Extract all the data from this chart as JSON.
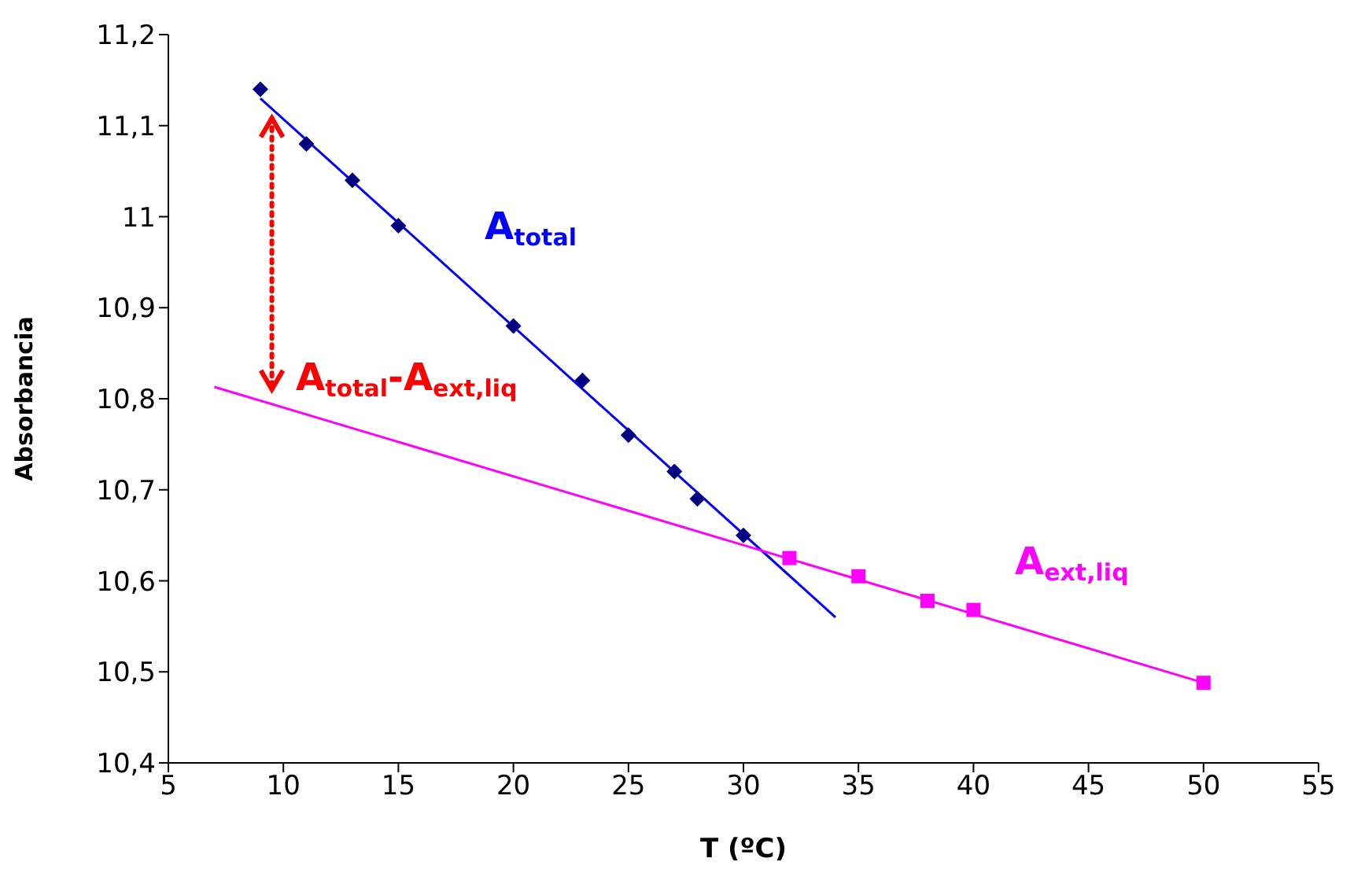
{
  "chart_data": {
    "type": "scatter",
    "xlabel": "T (ºC)",
    "ylabel": "Absorbancia",
    "xlim": [
      5,
      55
    ],
    "xticks": [
      5,
      10,
      15,
      20,
      25,
      30,
      35,
      40,
      45,
      50,
      55
    ],
    "ylim": [
      10.4,
      11.2
    ],
    "yticks": [
      {
        "value": 10.4,
        "label": "10,4"
      },
      {
        "value": 10.5,
        "label": "10,5"
      },
      {
        "value": 10.6,
        "label": "10,6"
      },
      {
        "value": 10.7,
        "label": "10,7"
      },
      {
        "value": 10.8,
        "label": "10,8"
      },
      {
        "value": 10.9,
        "label": "10,9"
      },
      {
        "value": 11,
        "label": "11"
      },
      {
        "value": 11.1,
        "label": "11,1"
      },
      {
        "value": 11.2,
        "label": "11,2"
      }
    ],
    "series": [
      {
        "marker": "diamond",
        "color": "#000080",
        "x": [
          9,
          11,
          13,
          15,
          20,
          23,
          25,
          27,
          28,
          30
        ],
        "values": [
          11.14,
          11.08,
          11.04,
          10.99,
          10.88,
          10.82,
          10.76,
          10.72,
          10.69,
          10.65
        ]
      },
      {
        "marker": "square",
        "color": "#ff00ff",
        "x": [
          32,
          35,
          38,
          40,
          50
        ],
        "values": [
          10.625,
          10.605,
          10.578,
          10.568,
          10.488
        ]
      },
      {
        "type": "line",
        "marker": "none",
        "color": "#0000ff",
        "x": [
          9,
          34
        ],
        "values": [
          11.13,
          10.56
        ]
      },
      {
        "type": "line",
        "marker": "none",
        "color": "#ff00ff",
        "x": [
          7,
          50
        ],
        "values": [
          10.813,
          10.488
        ]
      }
    ],
    "annotations": [
      "A$_{total}$",
      "A$_{ext,liq}$",
      {
        "text": "A$_{total}$-A$_{ext,liq}$",
        "x": 9.5,
        "y": 10.8
      }
    ]
  }
}
